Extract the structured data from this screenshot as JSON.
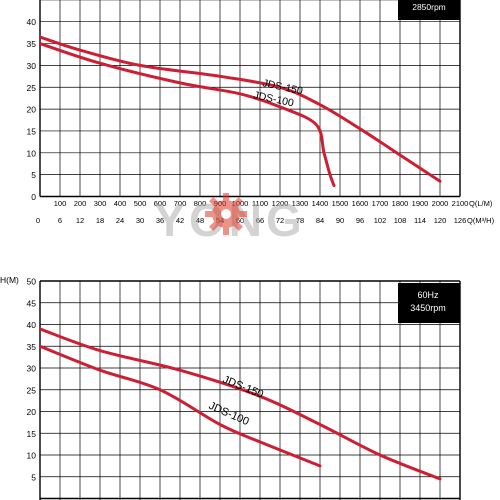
{
  "colors": {
    "curve": "#cc1f33",
    "grid": "#000000",
    "badge_bg": "#000000",
    "badge_fg": "#ffffff",
    "watermark_gray": "#a9a9a9",
    "watermark_red": "#e03a2a"
  },
  "watermark": {
    "text": "YONG"
  },
  "chart_data": [
    {
      "type": "line",
      "badge": {
        "line1": "",
        "line2": "2850rpm"
      },
      "ylabel": "",
      "xlabel_flow": "Q(L/M)",
      "xlabel_m3h": "Q(M³/H)",
      "ylim": [
        0,
        45
      ],
      "xlim": [
        0,
        2100
      ],
      "y_ticks": [
        "0",
        "5",
        "10",
        "15",
        "20",
        "25",
        "30",
        "35",
        "40"
      ],
      "x_ticks_lpm": [
        "100",
        "200",
        "300",
        "400",
        "500",
        "600",
        "700",
        "800",
        "900",
        "1000",
        "1100",
        "1200",
        "1300",
        "1400",
        "1500",
        "1600",
        "1700",
        "1800",
        "1900",
        "2000",
        "2100"
      ],
      "x_ticks_m3h": [
        "0",
        "6",
        "12",
        "18",
        "24",
        "30",
        "36",
        "42",
        "48",
        "54",
        "60",
        "66",
        "72",
        "78",
        "84",
        "90",
        "96",
        "102",
        "108",
        "114",
        "120",
        "126"
      ],
      "series": [
        {
          "name": "JDS-150",
          "x": [
            0,
            200,
            500,
            900,
            1200,
            1400,
            1600,
            1800,
            2000
          ],
          "y": [
            36.5,
            33.5,
            30,
            27.5,
            25,
            21,
            15.5,
            9.5,
            3.5
          ]
        },
        {
          "name": "JDS-100",
          "x": [
            0,
            300,
            700,
            1000,
            1200,
            1380,
            1420,
            1450,
            1470
          ],
          "y": [
            35,
            30.5,
            26,
            23.5,
            20.5,
            16.5,
            10,
            5,
            2.5
          ]
        }
      ]
    },
    {
      "type": "line",
      "badge": {
        "line1": "60Hz",
        "line2": "3450rpm"
      },
      "ylabel": "H(M)",
      "ylim": [
        0,
        50
      ],
      "xlim": [
        0,
        2100
      ],
      "y_ticks": [
        "5",
        "10",
        "15",
        "20",
        "25",
        "30",
        "35",
        "40",
        "45",
        "50"
      ],
      "series": [
        {
          "name": "JDS-150",
          "x": [
            0,
            300,
            700,
            1100,
            1400,
            1700,
            2000
          ],
          "y": [
            39,
            34,
            29.5,
            23.5,
            17,
            10,
            4.5
          ]
        },
        {
          "name": "JDS-100",
          "x": [
            0,
            300,
            600,
            900,
            1100,
            1400
          ],
          "y": [
            35,
            29.5,
            25,
            17,
            13,
            7.5
          ]
        }
      ]
    }
  ]
}
